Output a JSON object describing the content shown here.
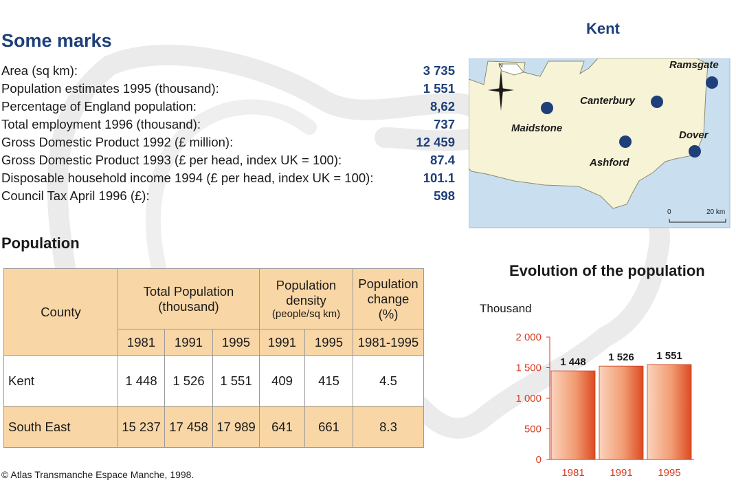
{
  "colors": {
    "accent": "#1e3f7a",
    "table_fill": "#f8d6a5",
    "chart_red": "#d83a20",
    "map_land": "#f7f3d6",
    "map_sea": "#c9dff0"
  },
  "marks": {
    "title": "Some marks",
    "rows": [
      {
        "label": "Area (sq km):",
        "value": "3 735"
      },
      {
        "label": "Population estimates 1995 (thousand):",
        "value": "1 551"
      },
      {
        "label": "Percentage of England population:",
        "value": "8,62"
      },
      {
        "label": "Total employment 1996 (thousand):",
        "value": "737"
      },
      {
        "label": "Gross Domestic Product 1992 (£ million):",
        "value": "12 459"
      },
      {
        "label": "Gross Domestic Product 1993 (£ per head, index UK = 100):",
        "value": "87.4"
      },
      {
        "label": "Disposable household income 1994 (£ per head, index UK = 100):",
        "value": "101.1"
      },
      {
        "label": "Council Tax April 1996 (£):",
        "value": "598"
      }
    ]
  },
  "population": {
    "title": "Population",
    "headers": {
      "county": "County",
      "total": "Total Population",
      "total_unit": "(thousand)",
      "density": "Population density",
      "density_unit": "(people/sq km)",
      "change": "Population change",
      "change_unit": "(%)",
      "years": [
        "1981",
        "1991",
        "1995",
        "1991",
        "1995",
        "1981-1995"
      ]
    },
    "rows": [
      {
        "county": "Kent",
        "cells": [
          "1 448",
          "1 526",
          "1 551",
          "409",
          "415",
          "4.5"
        ]
      },
      {
        "county": "South East",
        "cells": [
          "15 237",
          "17 458",
          "17 989",
          "641",
          "661",
          "8.3"
        ]
      }
    ]
  },
  "map": {
    "title": "Kent",
    "north": "N",
    "towns": [
      "Ramsgate",
      "Canterbury",
      "Maidstone",
      "Dover",
      "Ashford"
    ],
    "scale_start": "0",
    "scale_end": "20 km"
  },
  "chart_data": {
    "type": "bar",
    "title": "Evolution of the population",
    "ylabel": "Thousand",
    "categories": [
      "1981",
      "1991",
      "1995"
    ],
    "values": [
      1448,
      1526,
      1551
    ],
    "value_labels": [
      "1 448",
      "1 526",
      "1 551"
    ],
    "ylim": [
      0,
      2000
    ],
    "yticks": [
      0,
      500,
      1000,
      1500,
      2000
    ],
    "ytick_labels": [
      "0",
      "500",
      "1 000",
      "1 500",
      "2 000"
    ],
    "grid": false
  },
  "credit": "© Atlas Transmanche Espace Manche, 1998."
}
